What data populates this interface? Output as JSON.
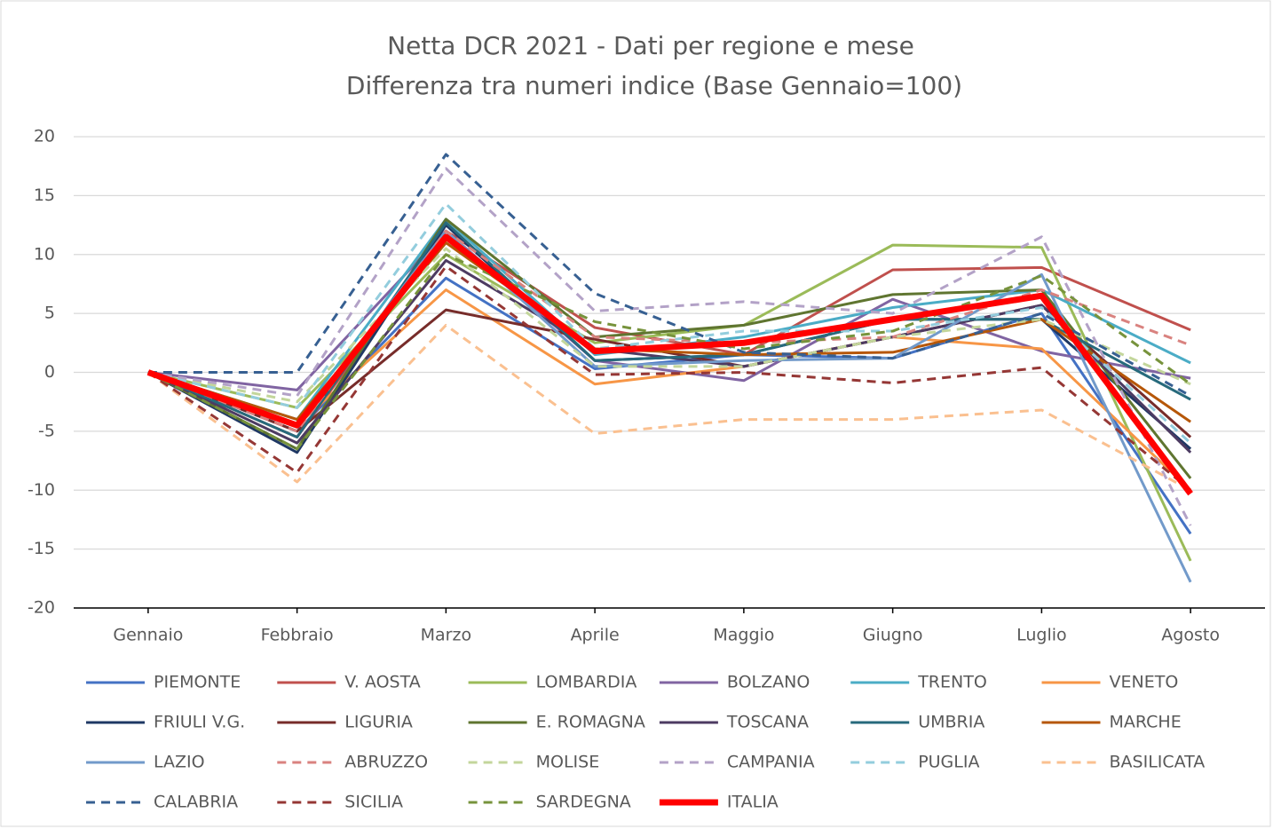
{
  "chart_data": {
    "type": "line",
    "title": "Netta DCR 2021 - Dati per regione e mese",
    "subtitle": "Differenza tra numeri indice (Base Gennaio=100)",
    "categories": [
      "Gennaio",
      "Febbraio",
      "Marzo",
      "Aprile",
      "Maggio",
      "Giugno",
      "Luglio",
      "Agosto"
    ],
    "ylim": [
      -20,
      20
    ],
    "yticks": [
      -20,
      -15,
      -10,
      -5,
      0,
      5,
      10,
      15,
      20
    ],
    "grid": true,
    "legend": "bottom",
    "series": [
      {
        "name": "PIEMONTE",
        "color": "#4472c4",
        "style": "solid",
        "values": [
          0,
          -5,
          8,
          0.3,
          1.5,
          1.2,
          5,
          -13.7
        ]
      },
      {
        "name": "V. AOSTA",
        "color": "#c0504d",
        "style": "solid",
        "values": [
          0,
          -5.5,
          12,
          3.8,
          1.5,
          8.7,
          8.9,
          3.6
        ]
      },
      {
        "name": "LOMBARDIA",
        "color": "#9bbb59",
        "style": "solid",
        "values": [
          0,
          -3,
          10,
          2.5,
          4,
          10.8,
          10.6,
          -16
        ]
      },
      {
        "name": "BOLZANO",
        "color": "#8064a2",
        "style": "solid",
        "values": [
          0,
          -1.5,
          12,
          1,
          -0.7,
          6.2,
          1.8,
          -0.5
        ]
      },
      {
        "name": "TRENTO",
        "color": "#4bacc6",
        "style": "solid",
        "values": [
          0,
          -4,
          13,
          1.5,
          3,
          5.5,
          7,
          0.8
        ]
      },
      {
        "name": "VENETO",
        "color": "#f79646",
        "style": "solid",
        "values": [
          0,
          -4.5,
          7,
          -1,
          0.5,
          3,
          2,
          -10
        ]
      },
      {
        "name": "FRIULI V.G.",
        "color": "#1f3864",
        "style": "solid",
        "values": [
          0,
          -6.8,
          12.5,
          1,
          1.5,
          4.5,
          4.5,
          -6.5
        ]
      },
      {
        "name": "LIGURIA",
        "color": "#772c2a",
        "style": "solid",
        "values": [
          0,
          -5,
          5.3,
          2.8,
          0.5,
          3,
          5.7,
          -5.5
        ]
      },
      {
        "name": "E. ROMAGNA",
        "color": "#5f7530",
        "style": "solid",
        "values": [
          0,
          -6.5,
          13,
          3,
          4,
          6.6,
          7,
          -9
        ]
      },
      {
        "name": "TOSCANA",
        "color": "#4d3b62",
        "style": "solid",
        "values": [
          0,
          -6,
          9.5,
          2,
          0.5,
          3,
          5.7,
          -6.8
        ]
      },
      {
        "name": "UMBRIA",
        "color": "#276a7c",
        "style": "solid",
        "values": [
          0,
          -5.5,
          12.7,
          1,
          1.5,
          4.5,
          4.5,
          -2.3
        ]
      },
      {
        "name": "MARCHE",
        "color": "#b65708",
        "style": "solid",
        "values": [
          0,
          -4,
          11,
          2,
          1.5,
          1.7,
          4.5,
          -4.2
        ]
      },
      {
        "name": "LAZIO",
        "color": "#729aca",
        "style": "solid",
        "values": [
          0,
          -4.5,
          12,
          0.5,
          1,
          1.2,
          8.3,
          -17.8
        ]
      },
      {
        "name": "ABRUZZO",
        "color": "#d9827f",
        "style": "dashed",
        "values": [
          0,
          -5,
          12,
          3,
          2.5,
          3,
          7,
          2.3
        ]
      },
      {
        "name": "MOLISE",
        "color": "#c3d69b",
        "style": "dashed",
        "values": [
          0,
          -2.5,
          10.5,
          0.5,
          0.5,
          3,
          4.5,
          -1
        ]
      },
      {
        "name": "CAMPANIA",
        "color": "#b3a2c7",
        "style": "dashed",
        "values": [
          0,
          -2,
          17.3,
          5.2,
          6,
          5,
          11.5,
          -13
        ]
      },
      {
        "name": "PUGLIA",
        "color": "#93cddd",
        "style": "dashed",
        "values": [
          0,
          -3,
          14.3,
          2,
          3.5,
          3.5,
          5.5,
          -6
        ]
      },
      {
        "name": "BASILICATA",
        "color": "#fac090",
        "style": "dashed",
        "values": [
          0,
          -9.3,
          4,
          -5.2,
          -4,
          -4,
          -3.2,
          -10
        ]
      },
      {
        "name": "CALABRIA",
        "color": "#376092",
        "style": "dashed",
        "values": [
          0,
          0,
          18.5,
          6.7,
          1.7,
          1.2,
          5,
          -2
        ]
      },
      {
        "name": "SICILIA",
        "color": "#953735",
        "style": "dashed",
        "values": [
          0,
          -8.5,
          9,
          -0.2,
          0,
          -0.9,
          0.4,
          -10
        ]
      },
      {
        "name": "SARDEGNA",
        "color": "#77933c",
        "style": "dashed",
        "values": [
          0,
          -6.5,
          10,
          4.3,
          2,
          3.5,
          8.2,
          -1
        ]
      },
      {
        "name": "ITALIA",
        "color": "#ff0000",
        "style": "bold",
        "values": [
          0,
          -4.5,
          11.5,
          1.8,
          2.5,
          4.5,
          6.5,
          -10.3
        ]
      }
    ]
  }
}
